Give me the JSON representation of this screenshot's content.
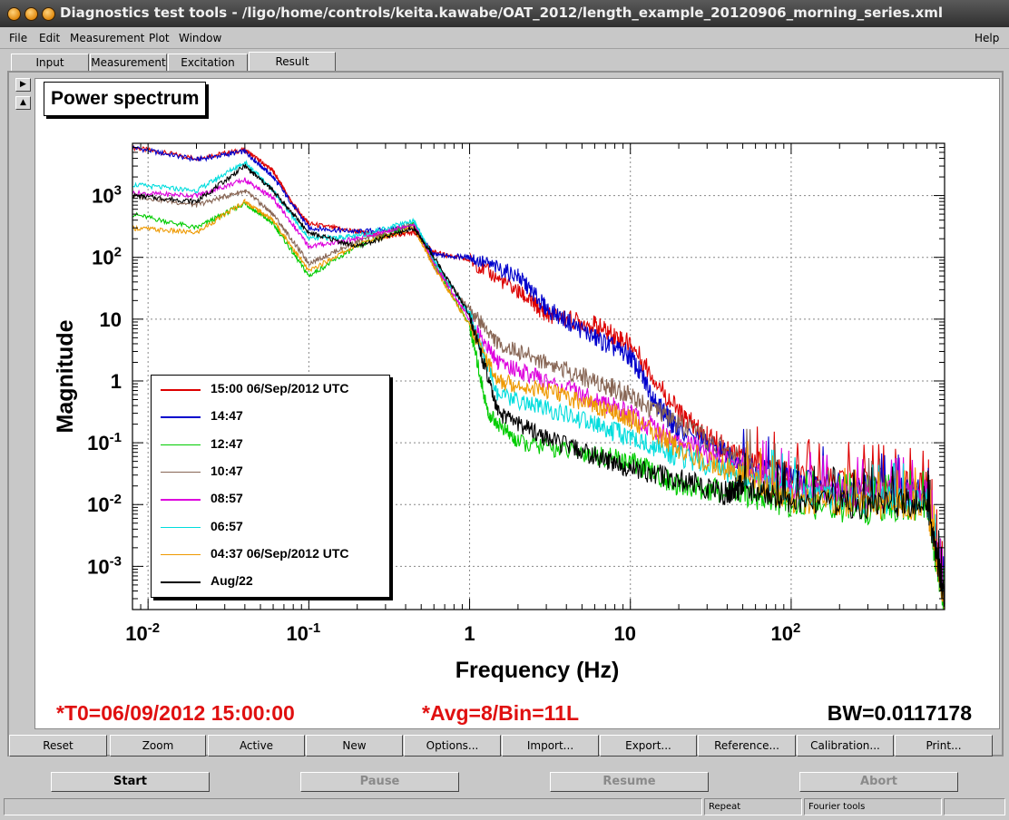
{
  "window": {
    "title": "Diagnostics test tools - /ligo/home/controls/keita.kawabe/OAT_2012/length_example_20120906_morning_series.xml"
  },
  "menu": {
    "file": "File",
    "edit": "Edit",
    "measurement": "Measurement",
    "plot": "Plot",
    "window": "Window",
    "help": "Help"
  },
  "tabs": [
    {
      "label": "Input"
    },
    {
      "label": "Measurement"
    },
    {
      "label": "Excitation"
    },
    {
      "label": "Result"
    }
  ],
  "plot": {
    "title": "Power spectrum",
    "t0": "*T0=06/09/2012 15:00:00",
    "avg": "*Avg=8/Bin=11L",
    "bw": "BW=0.0117178"
  },
  "chart_data": {
    "type": "line",
    "xlabel": "Frequency (Hz)",
    "ylabel": "Magnitude",
    "xscale": "log",
    "yscale": "log",
    "xlim": [
      0.008,
      900
    ],
    "ylim": [
      0.0002,
      7000
    ],
    "xtick_labels": [
      "10^-2",
      "10^-1",
      "1",
      "10",
      "10^2"
    ],
    "ytick_labels": [
      "10^-3",
      "10^-2",
      "10^-1",
      "1",
      "10",
      "10^2",
      "10^3"
    ],
    "grid": true,
    "legend_position": "lower-left",
    "series": [
      {
        "name": "15:00 06/Sep/2012 UTC",
        "color": "#dd0000",
        "points": [
          [
            0.008,
            6000
          ],
          [
            0.02,
            4000
          ],
          [
            0.04,
            5500
          ],
          [
            0.06,
            2500
          ],
          [
            0.08,
            700
          ],
          [
            0.1,
            350
          ],
          [
            0.2,
            260
          ],
          [
            0.3,
            220
          ],
          [
            0.45,
            250
          ],
          [
            0.6,
            120
          ],
          [
            1,
            90
          ],
          [
            2,
            28
          ],
          [
            3,
            12
          ],
          [
            6,
            8
          ],
          [
            10,
            4
          ],
          [
            20,
            0.3
          ],
          [
            30,
            0.12
          ],
          [
            50,
            0.06
          ],
          [
            100,
            0.03
          ],
          [
            300,
            0.025
          ],
          [
            700,
            0.02
          ],
          [
            900,
            0.0004
          ]
        ]
      },
      {
        "name": "14:47",
        "color": "#0000cc",
        "points": [
          [
            0.008,
            6000
          ],
          [
            0.02,
            3800
          ],
          [
            0.04,
            5200
          ],
          [
            0.06,
            2000
          ],
          [
            0.1,
            300
          ],
          [
            0.2,
            260
          ],
          [
            0.45,
            300
          ],
          [
            0.6,
            110
          ],
          [
            1,
            100
          ],
          [
            2,
            50
          ],
          [
            3,
            15
          ],
          [
            6,
            5
          ],
          [
            10,
            2.5
          ],
          [
            15,
            0.4
          ],
          [
            20,
            0.15
          ],
          [
            50,
            0.05
          ],
          [
            100,
            0.025
          ],
          [
            300,
            0.02
          ],
          [
            700,
            0.015
          ],
          [
            900,
            0.0003
          ]
        ]
      },
      {
        "name": "12:47",
        "color": "#00cc00",
        "points": [
          [
            0.008,
            500
          ],
          [
            0.02,
            300
          ],
          [
            0.04,
            750
          ],
          [
            0.06,
            350
          ],
          [
            0.1,
            50
          ],
          [
            0.2,
            150
          ],
          [
            0.45,
            350
          ],
          [
            0.6,
            80
          ],
          [
            1,
            8
          ],
          [
            1.3,
            0.3
          ],
          [
            2,
            0.1
          ],
          [
            5,
            0.07
          ],
          [
            10,
            0.05
          ],
          [
            20,
            0.02
          ],
          [
            50,
            0.015
          ],
          [
            100,
            0.01
          ],
          [
            300,
            0.008
          ],
          [
            700,
            0.01
          ],
          [
            900,
            0.0002
          ]
        ]
      },
      {
        "name": "10:47",
        "color": "#886655",
        "points": [
          [
            0.008,
            1000
          ],
          [
            0.02,
            700
          ],
          [
            0.04,
            1200
          ],
          [
            0.06,
            500
          ],
          [
            0.1,
            80
          ],
          [
            0.2,
            180
          ],
          [
            0.45,
            350
          ],
          [
            0.6,
            70
          ],
          [
            1,
            15
          ],
          [
            1.5,
            4
          ],
          [
            3,
            2
          ],
          [
            6,
            1
          ],
          [
            10,
            0.6
          ],
          [
            20,
            0.2
          ],
          [
            50,
            0.05
          ],
          [
            100,
            0.02
          ],
          [
            300,
            0.015
          ],
          [
            700,
            0.015
          ],
          [
            900,
            0.0003
          ]
        ]
      },
      {
        "name": "08:57",
        "color": "#dd00dd",
        "points": [
          [
            0.008,
            1100
          ],
          [
            0.02,
            1000
          ],
          [
            0.04,
            1800
          ],
          [
            0.06,
            900
          ],
          [
            0.1,
            150
          ],
          [
            0.2,
            200
          ],
          [
            0.45,
            350
          ],
          [
            0.6,
            80
          ],
          [
            1,
            10
          ],
          [
            1.5,
            2
          ],
          [
            3,
            1
          ],
          [
            6,
            0.5
          ],
          [
            10,
            0.3
          ],
          [
            20,
            0.1
          ],
          [
            50,
            0.04
          ],
          [
            100,
            0.02
          ],
          [
            300,
            0.015
          ],
          [
            700,
            0.015
          ],
          [
            900,
            0.0003
          ]
        ]
      },
      {
        "name": "06:57",
        "color": "#00dddd",
        "points": [
          [
            0.008,
            1500
          ],
          [
            0.02,
            1200
          ],
          [
            0.04,
            3500
          ],
          [
            0.06,
            1200
          ],
          [
            0.1,
            200
          ],
          [
            0.2,
            220
          ],
          [
            0.45,
            400
          ],
          [
            0.6,
            90
          ],
          [
            1,
            12
          ],
          [
            1.5,
            0.6
          ],
          [
            3,
            0.35
          ],
          [
            6,
            0.2
          ],
          [
            10,
            0.12
          ],
          [
            20,
            0.06
          ],
          [
            50,
            0.03
          ],
          [
            100,
            0.015
          ],
          [
            300,
            0.012
          ],
          [
            700,
            0.012
          ],
          [
            900,
            0.0003
          ]
        ]
      },
      {
        "name": "04:37 06/Sep/2012 UTC",
        "color": "#ee9900",
        "points": [
          [
            0.008,
            300
          ],
          [
            0.02,
            250
          ],
          [
            0.04,
            800
          ],
          [
            0.06,
            400
          ],
          [
            0.1,
            60
          ],
          [
            0.2,
            160
          ],
          [
            0.45,
            300
          ],
          [
            0.6,
            70
          ],
          [
            1,
            8
          ],
          [
            1.5,
            1
          ],
          [
            3,
            0.7
          ],
          [
            6,
            0.4
          ],
          [
            10,
            0.25
          ],
          [
            20,
            0.08
          ],
          [
            50,
            0.03
          ],
          [
            100,
            0.012
          ],
          [
            300,
            0.01
          ],
          [
            700,
            0.01
          ],
          [
            900,
            0.0003
          ]
        ]
      },
      {
        "name": "Aug/22",
        "color": "#000000",
        "points": [
          [
            0.008,
            1000
          ],
          [
            0.02,
            800
          ],
          [
            0.04,
            3000
          ],
          [
            0.06,
            1200
          ],
          [
            0.1,
            250
          ],
          [
            0.2,
            150
          ],
          [
            0.45,
            300
          ],
          [
            0.6,
            100
          ],
          [
            1,
            12
          ],
          [
            1.5,
            0.3
          ],
          [
            3,
            0.12
          ],
          [
            6,
            0.06
          ],
          [
            10,
            0.04
          ],
          [
            20,
            0.025
          ],
          [
            40,
            0.015
          ],
          [
            50,
            0.02
          ],
          [
            100,
            0.012
          ],
          [
            300,
            0.01
          ],
          [
            700,
            0.012
          ],
          [
            900,
            0.0003
          ]
        ]
      }
    ]
  },
  "toolbar": {
    "reset": "Reset",
    "zoom": "Zoom",
    "active": "Active",
    "new": "New",
    "options": "Options...",
    "import": "Import...",
    "export": "Export...",
    "reference": "Reference...",
    "calibration": "Calibration...",
    "print": "Print..."
  },
  "controls": {
    "start": "Start",
    "pause": "Pause",
    "resume": "Resume",
    "abort": "Abort"
  },
  "status": {
    "repeat": "Repeat",
    "fourier": "Fourier tools"
  }
}
